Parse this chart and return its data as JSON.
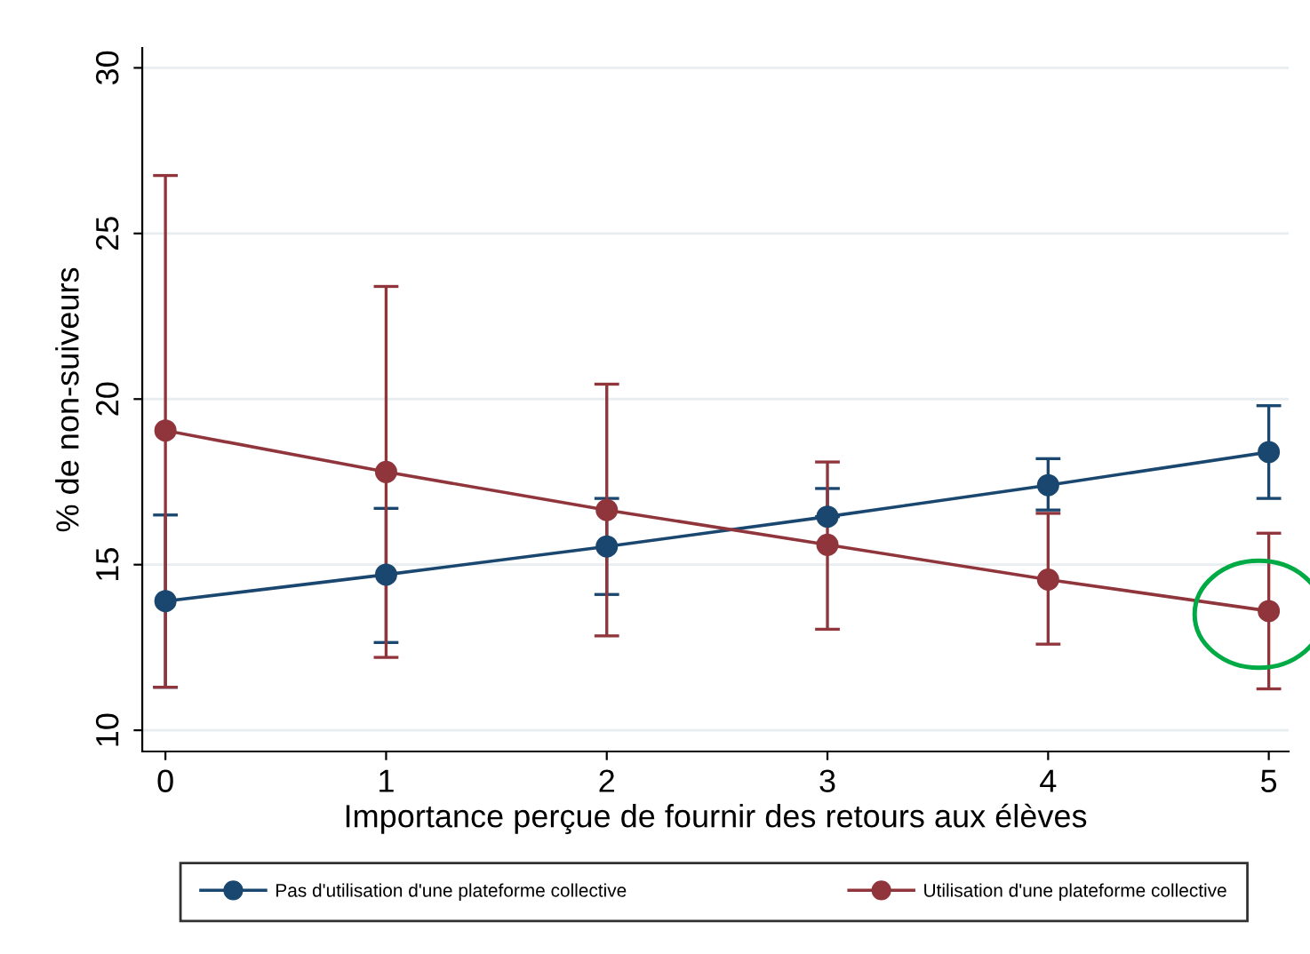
{
  "chart_data": {
    "type": "line",
    "xlabel": "Importance perçue de fournir des retours aux élèves",
    "ylabel": "% de non-suiveurs",
    "x": [
      0,
      1,
      2,
      3,
      4,
      5
    ],
    "series": [
      {
        "name": "Pas d'utilisation d'une plateforme collective",
        "color": "#1a476f",
        "values": [
          13.9,
          14.7,
          15.55,
          16.45,
          17.4,
          18.4
        ],
        "errors": [
          [
            11.3,
            16.5
          ],
          [
            12.65,
            16.7
          ],
          [
            14.1,
            17.0
          ],
          [
            16.45,
            17.3
          ],
          [
            16.65,
            18.2
          ],
          [
            17.0,
            19.8
          ]
        ]
      },
      {
        "name": "Utilisation d'une plateforme collective",
        "color": "#90353b",
        "values": [
          19.05,
          17.8,
          16.65,
          15.6,
          14.55,
          13.6
        ],
        "errors": [
          [
            11.3,
            26.75
          ],
          [
            12.2,
            23.4
          ],
          [
            12.85,
            20.45
          ],
          [
            13.05,
            18.1
          ],
          [
            12.6,
            16.55
          ],
          [
            11.25,
            15.95
          ]
        ]
      }
    ],
    "xlim": [
      -0.105,
      5.09
    ],
    "ylim": [
      9.36,
      30.6
    ],
    "xticks": [
      0,
      1,
      2,
      3,
      4,
      5
    ],
    "yticks": [
      10,
      15,
      20,
      25,
      30
    ],
    "grid": "y",
    "legend": "bottom",
    "marker": "circle",
    "line_style": "solid"
  }
}
